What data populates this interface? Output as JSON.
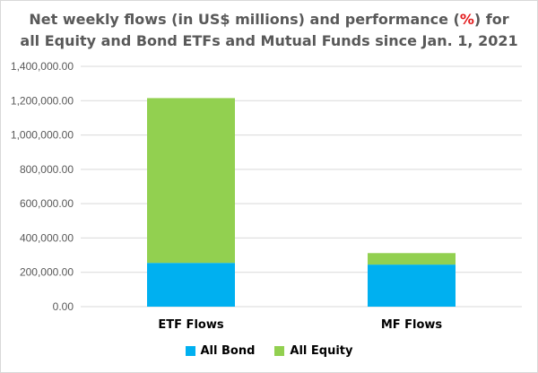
{
  "title": {
    "line1_a": "Net weekly flows (in US$ millions) and performance (",
    "line1_pct": "%",
    "line1_b": ") for",
    "line2": "all Equity and Bond ETFs and Mutual Funds since Jan. 1, 2021"
  },
  "colors": {
    "bond": "#00b0f0",
    "equity": "#92d050",
    "grid": "#d9d9d9",
    "title_pct": "#e31a1c"
  },
  "chart_data": {
    "type": "bar",
    "stacked": true,
    "categories": [
      "ETF Flows",
      "MF Flows"
    ],
    "series": [
      {
        "name": "All Bond",
        "values": [
          255000,
          245000
        ]
      },
      {
        "name": "All Equity",
        "values": [
          960000,
          67000
        ]
      }
    ],
    "ylim": [
      0,
      1400000
    ],
    "y_ticks": [
      "0.00",
      "200,000.00",
      "400,000.00",
      "600,000.00",
      "800,000.00",
      "1,000,000.00",
      "1,200,000.00",
      "1,400,000.00"
    ],
    "grid": true,
    "legend_position": "bottom"
  }
}
